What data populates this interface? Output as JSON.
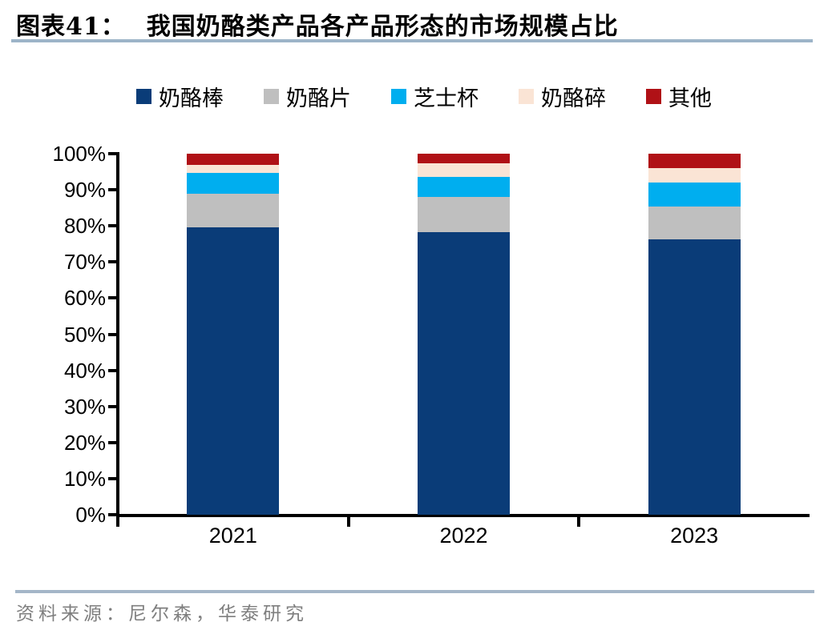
{
  "header": {
    "label": "图表41：",
    "title": "我国奶酪类产品各产品形态的市场规模占比"
  },
  "chart_data": {
    "type": "bar",
    "stacked": true,
    "title": "我国奶酪类产品各产品形态的市场规模占比",
    "categories": [
      "2021",
      "2022",
      "2023"
    ],
    "series": [
      {
        "key": "cheese-stick",
        "name": "奶酪棒",
        "color": "#0A3C78",
        "values": [
          79.6,
          78.2,
          76.2
        ]
      },
      {
        "key": "cheese-slice",
        "name": "奶酪片",
        "color": "#BFBFBF",
        "values": [
          9.4,
          9.9,
          9.2
        ]
      },
      {
        "key": "cheese-cup",
        "name": "芝士杯",
        "color": "#00AEEF",
        "values": [
          5.7,
          5.4,
          6.7
        ]
      },
      {
        "key": "shredded-cheese",
        "name": "奶酪碎",
        "color": "#FAE4D5",
        "values": [
          2.1,
          3.9,
          3.9
        ]
      },
      {
        "key": "other",
        "name": "其他",
        "color": "#B01116",
        "values": [
          3.2,
          2.6,
          4.0
        ]
      }
    ],
    "xlabel": "",
    "ylabel": "",
    "ylim": [
      0,
      100
    ],
    "ytick_step": 10,
    "ytick_labels": [
      "0%",
      "10%",
      "20%",
      "30%",
      "40%",
      "50%",
      "60%",
      "70%",
      "80%",
      "90%",
      "100%"
    ],
    "legend_position": "top",
    "grid": false,
    "unit": "percent"
  },
  "footer": {
    "source": "资料来源：尼尔森，华泰研究"
  },
  "colors": {
    "title_rule": "#9DB4C8",
    "footer_rule": "#A4B6C8",
    "axis": "#000000",
    "source_text": "#7F7F7F"
  }
}
